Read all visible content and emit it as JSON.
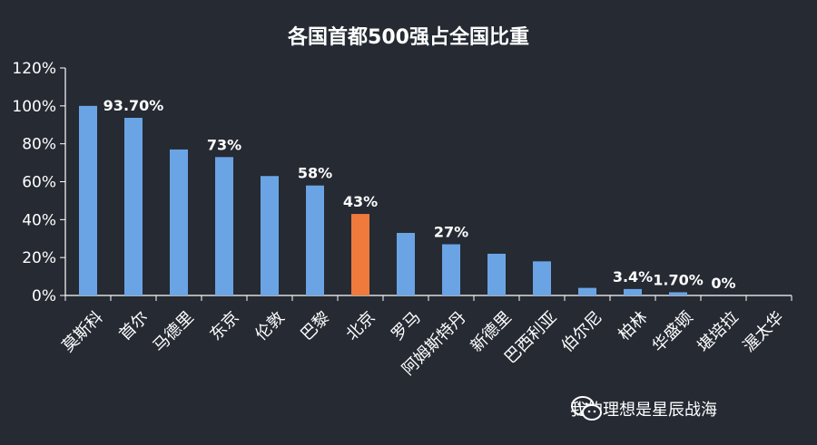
{
  "chart_data": {
    "type": "bar",
    "title": "各国首都500强占全国比重",
    "categories": [
      "莫斯科",
      "首尔",
      "马德里",
      "东京",
      "伦敦",
      "巴黎",
      "北京",
      "罗马",
      "阿姆斯特丹",
      "新德里",
      "巴西利亚",
      "伯尔尼",
      "柏林",
      "华盛顿",
      "堪培拉",
      "渥太华"
    ],
    "values": [
      100,
      93.7,
      77,
      73,
      63,
      58,
      43,
      33,
      27,
      22,
      18,
      4,
      3.4,
      1.7,
      0,
      0
    ],
    "data_labels": [
      "",
      "93.70%",
      "",
      "73%",
      "",
      "58%",
      "43%",
      "",
      "27%",
      "",
      "",
      "",
      "3.4%",
      "1.70%",
      "0%",
      ""
    ],
    "highlight_index": 6,
    "bar_color": "#6ba4e4",
    "highlight_color": "#ef7a3c",
    "ylim": [
      0,
      120
    ],
    "yticks": [
      0,
      20,
      40,
      60,
      80,
      100,
      120
    ],
    "ytick_labels": [
      "0%",
      "20%",
      "40%",
      "60%",
      "80%",
      "100%",
      "120%"
    ],
    "xlabel": "",
    "ylabel": "",
    "grid": false
  },
  "watermark": {
    "icon": "wechat-icon",
    "text": "我的理想是星辰战海"
  }
}
